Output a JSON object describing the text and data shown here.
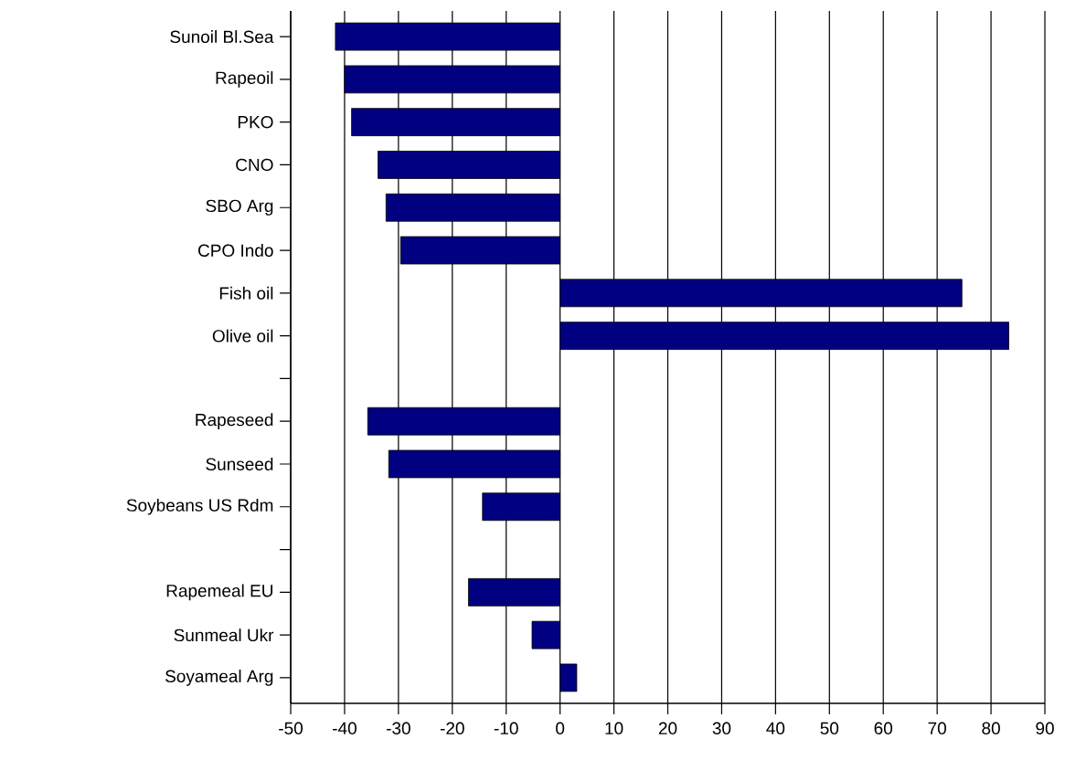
{
  "chart_data": {
    "type": "bar",
    "orientation": "horizontal",
    "categories": [
      "Sunoil Bl.Sea",
      "Rapeoil",
      "PKO",
      "CNO",
      "SBO Arg",
      "CPO Indo",
      "Fish oil",
      "Olive oil",
      null,
      "Rapeseed",
      "Sunseed",
      "Soybeans US Rdm",
      null,
      "Rapemeal EU",
      "Sunmeal Ukr",
      "Soyameal Arg"
    ],
    "values": [
      -41.7,
      -40,
      -38.7,
      -33.8,
      -32.3,
      -29.6,
      74.6,
      83.3,
      null,
      -35.7,
      -31.8,
      -14.4,
      null,
      -17,
      -5.2,
      3.1
    ],
    "color": "#000080",
    "xlim": [
      -50,
      90
    ],
    "xticks": [
      -50,
      -40,
      -30,
      -20,
      -10,
      0,
      10,
      20,
      30,
      40,
      50,
      60,
      70,
      80,
      90
    ],
    "grid": "x"
  }
}
